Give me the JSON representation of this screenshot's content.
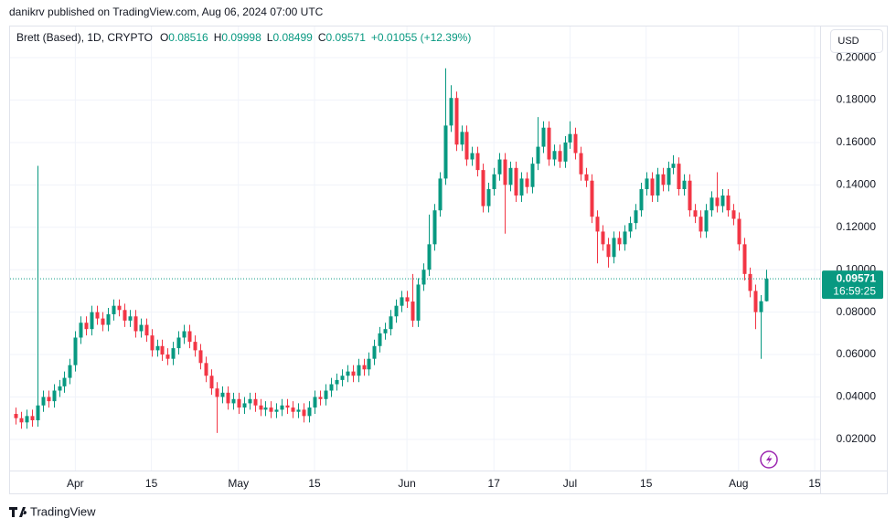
{
  "published": "danikrv published on TradingView.com, Aug 06, 2024 07:00 UTC",
  "footer_brand": "TradingView",
  "chart_data": {
    "type": "candlestick",
    "header": {
      "symbol": "Brett (Based), 1D, CRYPTO",
      "ohlc": [
        {
          "label": "O",
          "value": "0.08516"
        },
        {
          "label": "H",
          "value": "0.09998"
        },
        {
          "label": "L",
          "value": "0.08499"
        },
        {
          "label": "C",
          "value": "0.09571"
        }
      ],
      "change": "+0.01055 (+12.39%)"
    },
    "currency": "USD",
    "last_price_label": "0.09571",
    "countdown": "16:59:25",
    "up_color": "#089981",
    "down_color": "#f23645",
    "grid": true,
    "x": [
      "2024-03-21",
      "2024-03-22",
      "2024-03-23",
      "2024-03-24",
      "2024-03-25",
      "2024-03-26",
      "2024-03-27",
      "2024-03-28",
      "2024-03-29",
      "2024-03-30",
      "2024-03-31",
      "2024-04-01",
      "2024-04-02",
      "2024-04-03",
      "2024-04-04",
      "2024-04-05",
      "2024-04-06",
      "2024-04-07",
      "2024-04-08",
      "2024-04-09",
      "2024-04-10",
      "2024-04-11",
      "2024-04-12",
      "2024-04-13",
      "2024-04-14",
      "2024-04-15",
      "2024-04-16",
      "2024-04-17",
      "2024-04-18",
      "2024-04-19",
      "2024-04-20",
      "2024-04-21",
      "2024-04-22",
      "2024-04-23",
      "2024-04-24",
      "2024-04-25",
      "2024-04-26",
      "2024-04-27",
      "2024-04-28",
      "2024-04-29",
      "2024-04-30",
      "2024-05-01",
      "2024-05-02",
      "2024-05-03",
      "2024-05-04",
      "2024-05-05",
      "2024-05-06",
      "2024-05-07",
      "2024-05-08",
      "2024-05-09",
      "2024-05-10",
      "2024-05-11",
      "2024-05-12",
      "2024-05-13",
      "2024-05-14",
      "2024-05-15",
      "2024-05-16",
      "2024-05-17",
      "2024-05-18",
      "2024-05-19",
      "2024-05-20",
      "2024-05-21",
      "2024-05-22",
      "2024-05-23",
      "2024-05-24",
      "2024-05-25",
      "2024-05-26",
      "2024-05-27",
      "2024-05-28",
      "2024-05-29",
      "2024-05-30",
      "2024-05-31",
      "2024-06-01",
      "2024-06-02",
      "2024-06-03",
      "2024-06-04",
      "2024-06-05",
      "2024-06-06",
      "2024-06-07",
      "2024-06-08",
      "2024-06-09",
      "2024-06-10",
      "2024-06-11",
      "2024-06-12",
      "2024-06-13",
      "2024-06-14",
      "2024-06-15",
      "2024-06-16",
      "2024-06-17",
      "2024-06-18",
      "2024-06-19",
      "2024-06-20",
      "2024-06-21",
      "2024-06-22",
      "2024-06-23",
      "2024-06-24",
      "2024-06-25",
      "2024-06-26",
      "2024-06-27",
      "2024-06-28",
      "2024-06-29",
      "2024-06-30",
      "2024-07-01",
      "2024-07-02",
      "2024-07-03",
      "2024-07-04",
      "2024-07-05",
      "2024-07-06",
      "2024-07-07",
      "2024-07-08",
      "2024-07-09",
      "2024-07-10",
      "2024-07-11",
      "2024-07-12",
      "2024-07-13",
      "2024-07-14",
      "2024-07-15",
      "2024-07-16",
      "2024-07-17",
      "2024-07-18",
      "2024-07-19",
      "2024-07-20",
      "2024-07-21",
      "2024-07-22",
      "2024-07-23",
      "2024-07-24",
      "2024-07-25",
      "2024-07-26",
      "2024-07-27",
      "2024-07-28",
      "2024-07-29",
      "2024-07-30",
      "2024-07-31",
      "2024-08-01",
      "2024-08-02",
      "2024-08-03",
      "2024-08-04",
      "2024-08-05",
      "2024-08-06"
    ],
    "open": [
      0.032,
      0.03,
      0.028,
      0.031,
      0.029,
      0.036,
      0.04,
      0.038,
      0.043,
      0.045,
      0.049,
      0.055,
      0.068,
      0.075,
      0.072,
      0.08,
      0.077,
      0.074,
      0.079,
      0.083,
      0.081,
      0.076,
      0.078,
      0.071,
      0.074,
      0.069,
      0.062,
      0.064,
      0.06,
      0.058,
      0.063,
      0.068,
      0.071,
      0.066,
      0.062,
      0.056,
      0.05,
      0.044,
      0.04,
      0.042,
      0.037,
      0.039,
      0.035,
      0.037,
      0.039,
      0.036,
      0.034,
      0.035,
      0.033,
      0.034,
      0.036,
      0.035,
      0.033,
      0.034,
      0.031,
      0.035,
      0.04,
      0.039,
      0.043,
      0.046,
      0.048,
      0.05,
      0.052,
      0.05,
      0.055,
      0.053,
      0.058,
      0.064,
      0.07,
      0.072,
      0.078,
      0.083,
      0.087,
      0.085,
      0.076,
      0.093,
      0.1,
      0.112,
      0.128,
      0.143,
      0.168,
      0.181,
      0.159,
      0.165,
      0.152,
      0.155,
      0.147,
      0.13,
      0.138,
      0.145,
      0.152,
      0.14,
      0.148,
      0.135,
      0.143,
      0.139,
      0.15,
      0.158,
      0.167,
      0.152,
      0.156,
      0.151,
      0.16,
      0.164,
      0.155,
      0.145,
      0.142,
      0.125,
      0.118,
      0.112,
      0.106,
      0.115,
      0.112,
      0.118,
      0.122,
      0.128,
      0.138,
      0.143,
      0.135,
      0.145,
      0.14,
      0.148,
      0.15,
      0.138,
      0.142,
      0.128,
      0.125,
      0.118,
      0.128,
      0.134,
      0.13,
      0.135,
      0.128,
      0.124,
      0.112,
      0.098,
      0.09,
      0.08,
      0.08516
    ],
    "high": [
      0.035,
      0.033,
      0.034,
      0.034,
      0.149,
      0.043,
      0.043,
      0.046,
      0.048,
      0.052,
      0.058,
      0.071,
      0.078,
      0.078,
      0.083,
      0.083,
      0.08,
      0.082,
      0.086,
      0.086,
      0.084,
      0.081,
      0.081,
      0.077,
      0.077,
      0.072,
      0.067,
      0.067,
      0.063,
      0.066,
      0.071,
      0.074,
      0.074,
      0.069,
      0.065,
      0.059,
      0.053,
      0.047,
      0.045,
      0.045,
      0.042,
      0.042,
      0.04,
      0.042,
      0.042,
      0.039,
      0.038,
      0.038,
      0.037,
      0.039,
      0.039,
      0.038,
      0.037,
      0.037,
      0.038,
      0.043,
      0.043,
      0.046,
      0.049,
      0.051,
      0.053,
      0.055,
      0.055,
      0.058,
      0.058,
      0.061,
      0.067,
      0.073,
      0.075,
      0.081,
      0.086,
      0.09,
      0.09,
      0.098,
      0.096,
      0.103,
      0.126,
      0.131,
      0.146,
      0.195,
      0.187,
      0.184,
      0.168,
      0.168,
      0.158,
      0.158,
      0.15,
      0.141,
      0.148,
      0.155,
      0.155,
      0.151,
      0.151,
      0.146,
      0.146,
      0.153,
      0.172,
      0.17,
      0.17,
      0.159,
      0.159,
      0.163,
      0.17,
      0.167,
      0.158,
      0.148,
      0.145,
      0.128,
      0.121,
      0.115,
      0.118,
      0.118,
      0.121,
      0.125,
      0.131,
      0.141,
      0.146,
      0.146,
      0.148,
      0.148,
      0.151,
      0.154,
      0.153,
      0.145,
      0.145,
      0.131,
      0.128,
      0.131,
      0.137,
      0.146,
      0.138,
      0.138,
      0.131,
      0.127,
      0.115,
      0.101,
      0.093,
      0.088,
      0.09998
    ],
    "low": [
      0.027,
      0.025,
      0.025,
      0.026,
      0.026,
      0.033,
      0.035,
      0.035,
      0.04,
      0.042,
      0.046,
      0.052,
      0.065,
      0.069,
      0.069,
      0.074,
      0.071,
      0.071,
      0.076,
      0.078,
      0.073,
      0.073,
      0.068,
      0.068,
      0.066,
      0.059,
      0.059,
      0.057,
      0.055,
      0.055,
      0.06,
      0.065,
      0.063,
      0.059,
      0.053,
      0.047,
      0.041,
      0.023,
      0.037,
      0.034,
      0.034,
      0.032,
      0.032,
      0.034,
      0.033,
      0.031,
      0.031,
      0.03,
      0.03,
      0.031,
      0.032,
      0.03,
      0.03,
      0.028,
      0.028,
      0.032,
      0.036,
      0.036,
      0.04,
      0.043,
      0.045,
      0.047,
      0.047,
      0.047,
      0.05,
      0.05,
      0.055,
      0.061,
      0.067,
      0.069,
      0.075,
      0.08,
      0.082,
      0.073,
      0.073,
      0.09,
      0.097,
      0.109,
      0.125,
      0.14,
      0.165,
      0.156,
      0.156,
      0.149,
      0.149,
      0.144,
      0.127,
      0.127,
      0.135,
      0.142,
      0.117,
      0.137,
      0.132,
      0.132,
      0.136,
      0.136,
      0.147,
      0.155,
      0.149,
      0.149,
      0.148,
      0.148,
      0.157,
      0.152,
      0.142,
      0.139,
      0.122,
      0.103,
      0.109,
      0.101,
      0.103,
      0.109,
      0.109,
      0.115,
      0.119,
      0.125,
      0.135,
      0.132,
      0.132,
      0.137,
      0.137,
      0.145,
      0.135,
      0.135,
      0.125,
      0.122,
      0.115,
      0.115,
      0.125,
      0.127,
      0.127,
      0.125,
      0.121,
      0.109,
      0.095,
      0.087,
      0.072,
      0.058,
      0.08499
    ],
    "close": [
      0.03,
      0.028,
      0.031,
      0.029,
      0.036,
      0.04,
      0.038,
      0.043,
      0.045,
      0.049,
      0.055,
      0.068,
      0.075,
      0.072,
      0.08,
      0.077,
      0.074,
      0.079,
      0.083,
      0.081,
      0.076,
      0.078,
      0.071,
      0.074,
      0.069,
      0.062,
      0.064,
      0.06,
      0.058,
      0.063,
      0.068,
      0.071,
      0.066,
      0.062,
      0.056,
      0.05,
      0.044,
      0.04,
      0.042,
      0.037,
      0.039,
      0.035,
      0.037,
      0.039,
      0.036,
      0.034,
      0.035,
      0.033,
      0.034,
      0.036,
      0.035,
      0.033,
      0.034,
      0.031,
      0.035,
      0.04,
      0.039,
      0.043,
      0.046,
      0.048,
      0.05,
      0.052,
      0.05,
      0.055,
      0.053,
      0.058,
      0.064,
      0.07,
      0.072,
      0.078,
      0.083,
      0.087,
      0.085,
      0.076,
      0.093,
      0.1,
      0.112,
      0.128,
      0.143,
      0.168,
      0.181,
      0.159,
      0.165,
      0.152,
      0.155,
      0.147,
      0.13,
      0.138,
      0.145,
      0.152,
      0.14,
      0.148,
      0.135,
      0.143,
      0.139,
      0.15,
      0.158,
      0.167,
      0.152,
      0.156,
      0.151,
      0.16,
      0.164,
      0.155,
      0.145,
      0.142,
      0.125,
      0.118,
      0.112,
      0.106,
      0.115,
      0.112,
      0.118,
      0.122,
      0.128,
      0.138,
      0.143,
      0.135,
      0.145,
      0.14,
      0.148,
      0.15,
      0.138,
      0.142,
      0.128,
      0.125,
      0.118,
      0.128,
      0.134,
      0.13,
      0.135,
      0.128,
      0.124,
      0.112,
      0.098,
      0.09,
      0.08,
      0.08516,
      0.09571
    ],
    "xlim": [
      "2024-03-20",
      "2024-08-16"
    ],
    "xticks": [
      {
        "value": "2024-04-01",
        "label": "Apr"
      },
      {
        "value": "2024-04-15",
        "label": "15"
      },
      {
        "value": "2024-05-01",
        "label": "May"
      },
      {
        "value": "2024-05-15",
        "label": "15"
      },
      {
        "value": "2024-06-01",
        "label": "Jun"
      },
      {
        "value": "2024-06-17",
        "label": "17"
      },
      {
        "value": "2024-07-01",
        "label": "Jul"
      },
      {
        "value": "2024-07-15",
        "label": "15"
      },
      {
        "value": "2024-08-01",
        "label": "Aug"
      },
      {
        "value": "2024-08-15",
        "label": "15"
      }
    ],
    "ylim": [
      0.0053,
      0.2147
    ],
    "yticks": [
      {
        "value": 0.02,
        "label": "0.02000"
      },
      {
        "value": 0.04,
        "label": "0.04000"
      },
      {
        "value": 0.06,
        "label": "0.06000"
      },
      {
        "value": 0.08,
        "label": "0.08000"
      },
      {
        "value": 0.1,
        "label": "0.10000"
      },
      {
        "value": 0.12,
        "label": "0.12000"
      },
      {
        "value": 0.14,
        "label": "0.14000"
      },
      {
        "value": 0.16,
        "label": "0.16000"
      },
      {
        "value": 0.18,
        "label": "0.18000"
      },
      {
        "value": 0.2,
        "label": "0.20000"
      }
    ]
  }
}
